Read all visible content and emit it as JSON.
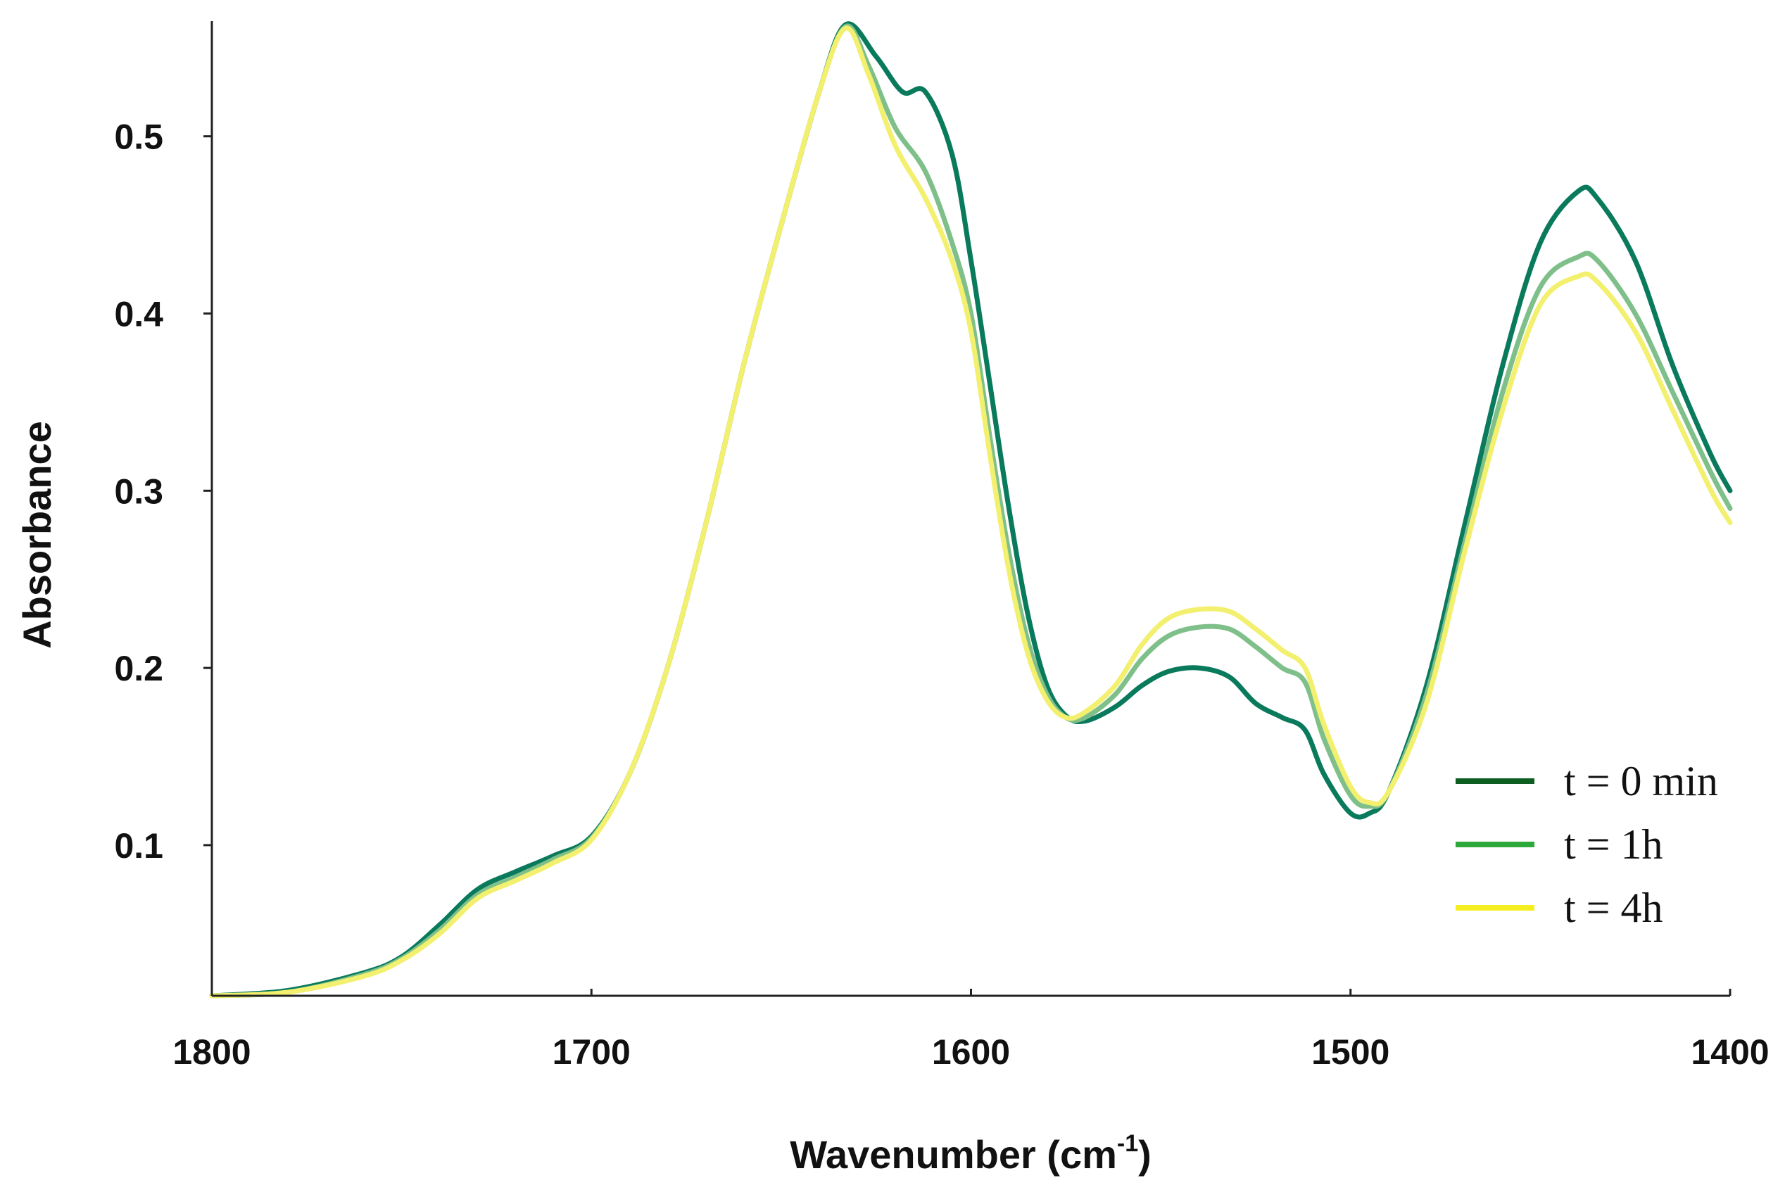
{
  "chart_data": {
    "type": "line",
    "xlabel_main": "Wavenumber (cm",
    "xlabel_sup": "-1",
    "xlabel_close": ")",
    "ylabel": "Absorbance",
    "xlim": [
      1800,
      1400
    ],
    "x_reversed": true,
    "ylim": [
      0.015,
      0.565
    ],
    "x_ticks": [
      1800,
      1700,
      1600,
      1500,
      1400
    ],
    "x_tick_labels": [
      "1800",
      "1700",
      "1600",
      "1500",
      "1400"
    ],
    "y_ticks": [
      0.1,
      0.2,
      0.3,
      0.4,
      0.5
    ],
    "y_tick_labels": [
      "0.1",
      "0.2",
      "0.3",
      "0.4",
      "0.5"
    ],
    "grid": false,
    "legend_position": "bottom-right",
    "series": [
      {
        "name": "t = 0 min",
        "color": "#0a7a5c",
        "legend_color": "#0e5e21",
        "points": [
          [
            1800,
            0.015
          ],
          [
            1780,
            0.018
          ],
          [
            1760,
            0.028
          ],
          [
            1750,
            0.037
          ],
          [
            1740,
            0.055
          ],
          [
            1730,
            0.075
          ],
          [
            1720,
            0.085
          ],
          [
            1710,
            0.094
          ],
          [
            1700,
            0.105
          ],
          [
            1690,
            0.14
          ],
          [
            1680,
            0.2
          ],
          [
            1670,
            0.28
          ],
          [
            1660,
            0.37
          ],
          [
            1650,
            0.45
          ],
          [
            1640,
            0.525
          ],
          [
            1633,
            0.563
          ],
          [
            1625,
            0.545
          ],
          [
            1618,
            0.525
          ],
          [
            1612,
            0.525
          ],
          [
            1605,
            0.49
          ],
          [
            1600,
            0.43
          ],
          [
            1595,
            0.36
          ],
          [
            1590,
            0.29
          ],
          [
            1585,
            0.23
          ],
          [
            1580,
            0.19
          ],
          [
            1575,
            0.173
          ],
          [
            1570,
            0.17
          ],
          [
            1562,
            0.178
          ],
          [
            1555,
            0.19
          ],
          [
            1548,
            0.198
          ],
          [
            1540,
            0.2
          ],
          [
            1532,
            0.195
          ],
          [
            1525,
            0.18
          ],
          [
            1518,
            0.172
          ],
          [
            1512,
            0.165
          ],
          [
            1507,
            0.14
          ],
          [
            1500,
            0.118
          ],
          [
            1495,
            0.118
          ],
          [
            1490,
            0.13
          ],
          [
            1480,
            0.19
          ],
          [
            1470,
            0.28
          ],
          [
            1460,
            0.37
          ],
          [
            1450,
            0.44
          ],
          [
            1440,
            0.469
          ],
          [
            1435,
            0.465
          ],
          [
            1425,
            0.43
          ],
          [
            1415,
            0.37
          ],
          [
            1405,
            0.32
          ],
          [
            1400,
            0.3
          ]
        ]
      },
      {
        "name": "t = 1h",
        "color": "#7fc08a",
        "legend_color": "#2da83a",
        "points": [
          [
            1800,
            0.015
          ],
          [
            1780,
            0.017
          ],
          [
            1760,
            0.027
          ],
          [
            1750,
            0.036
          ],
          [
            1740,
            0.052
          ],
          [
            1730,
            0.072
          ],
          [
            1720,
            0.082
          ],
          [
            1710,
            0.092
          ],
          [
            1700,
            0.104
          ],
          [
            1690,
            0.14
          ],
          [
            1680,
            0.2
          ],
          [
            1670,
            0.28
          ],
          [
            1660,
            0.37
          ],
          [
            1650,
            0.45
          ],
          [
            1640,
            0.525
          ],
          [
            1633,
            0.562
          ],
          [
            1627,
            0.54
          ],
          [
            1620,
            0.505
          ],
          [
            1612,
            0.48
          ],
          [
            1605,
            0.44
          ],
          [
            1600,
            0.4
          ],
          [
            1595,
            0.33
          ],
          [
            1590,
            0.265
          ],
          [
            1585,
            0.215
          ],
          [
            1580,
            0.185
          ],
          [
            1575,
            0.172
          ],
          [
            1570,
            0.172
          ],
          [
            1562,
            0.185
          ],
          [
            1555,
            0.205
          ],
          [
            1548,
            0.218
          ],
          [
            1540,
            0.223
          ],
          [
            1532,
            0.222
          ],
          [
            1525,
            0.212
          ],
          [
            1518,
            0.2
          ],
          [
            1512,
            0.192
          ],
          [
            1507,
            0.16
          ],
          [
            1500,
            0.128
          ],
          [
            1495,
            0.122
          ],
          [
            1490,
            0.13
          ],
          [
            1480,
            0.185
          ],
          [
            1470,
            0.27
          ],
          [
            1460,
            0.355
          ],
          [
            1450,
            0.415
          ],
          [
            1440,
            0.432
          ],
          [
            1435,
            0.43
          ],
          [
            1425,
            0.4
          ],
          [
            1415,
            0.355
          ],
          [
            1405,
            0.31
          ],
          [
            1400,
            0.29
          ]
        ]
      },
      {
        "name": "t = 4h",
        "color": "#f2f06e",
        "legend_color": "#f4ee21",
        "points": [
          [
            1800,
            0.015
          ],
          [
            1780,
            0.017
          ],
          [
            1760,
            0.026
          ],
          [
            1750,
            0.035
          ],
          [
            1740,
            0.05
          ],
          [
            1730,
            0.07
          ],
          [
            1720,
            0.08
          ],
          [
            1710,
            0.09
          ],
          [
            1700,
            0.103
          ],
          [
            1690,
            0.14
          ],
          [
            1680,
            0.2
          ],
          [
            1670,
            0.28
          ],
          [
            1660,
            0.37
          ],
          [
            1650,
            0.45
          ],
          [
            1640,
            0.525
          ],
          [
            1633,
            0.561
          ],
          [
            1627,
            0.535
          ],
          [
            1620,
            0.495
          ],
          [
            1612,
            0.465
          ],
          [
            1605,
            0.43
          ],
          [
            1600,
            0.39
          ],
          [
            1595,
            0.32
          ],
          [
            1590,
            0.255
          ],
          [
            1585,
            0.208
          ],
          [
            1580,
            0.182
          ],
          [
            1575,
            0.172
          ],
          [
            1570,
            0.175
          ],
          [
            1562,
            0.19
          ],
          [
            1555,
            0.213
          ],
          [
            1548,
            0.228
          ],
          [
            1540,
            0.233
          ],
          [
            1532,
            0.232
          ],
          [
            1525,
            0.222
          ],
          [
            1518,
            0.21
          ],
          [
            1512,
            0.2
          ],
          [
            1507,
            0.168
          ],
          [
            1500,
            0.133
          ],
          [
            1495,
            0.124
          ],
          [
            1490,
            0.13
          ],
          [
            1480,
            0.18
          ],
          [
            1470,
            0.265
          ],
          [
            1460,
            0.345
          ],
          [
            1450,
            0.405
          ],
          [
            1440,
            0.421
          ],
          [
            1435,
            0.418
          ],
          [
            1425,
            0.39
          ],
          [
            1415,
            0.345
          ],
          [
            1405,
            0.3
          ],
          [
            1400,
            0.282
          ]
        ]
      }
    ]
  }
}
